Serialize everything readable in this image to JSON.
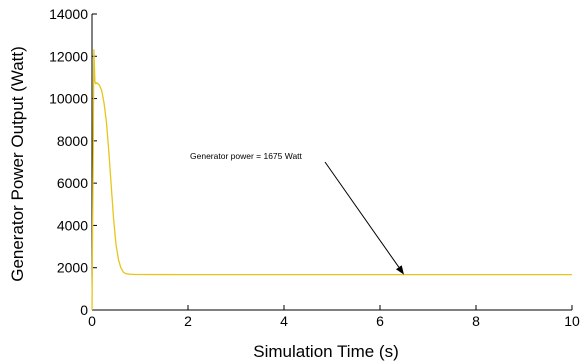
{
  "chart_data": {
    "type": "line",
    "title": "",
    "xlabel": "Simulation Time (s)",
    "ylabel": "Generator Power Output (Watt)",
    "xlim": [
      0,
      10
    ],
    "ylim": [
      0,
      14000
    ],
    "x_ticks": [
      0,
      2,
      4,
      6,
      8,
      10
    ],
    "y_ticks": [
      0,
      2000,
      4000,
      6000,
      8000,
      10000,
      12000,
      14000
    ],
    "grid": false,
    "legend": "none",
    "series": [
      {
        "color": "#e6c619",
        "x": [
          0.0,
          0.04,
          0.06,
          0.08,
          0.1,
          0.15,
          0.2,
          0.25,
          0.3,
          0.35,
          0.4,
          0.45,
          0.5,
          0.55,
          0.6,
          0.65,
          0.7,
          0.8,
          0.9,
          1.0,
          1.5,
          2,
          3,
          4,
          5,
          6,
          6.5,
          7,
          8,
          9,
          10
        ],
        "y": [
          0,
          12300,
          10800,
          10700,
          10750,
          10650,
          10400,
          9800,
          8900,
          7500,
          5900,
          4300,
          3100,
          2400,
          2000,
          1800,
          1720,
          1690,
          1680,
          1678,
          1676,
          1675,
          1675,
          1675,
          1675,
          1675,
          1675,
          1675,
          1675,
          1675,
          1675
        ]
      }
    ],
    "annotations": [
      {
        "text": "Generator power = 1675 Watt",
        "x": 6.5,
        "y": 1675
      }
    ]
  }
}
